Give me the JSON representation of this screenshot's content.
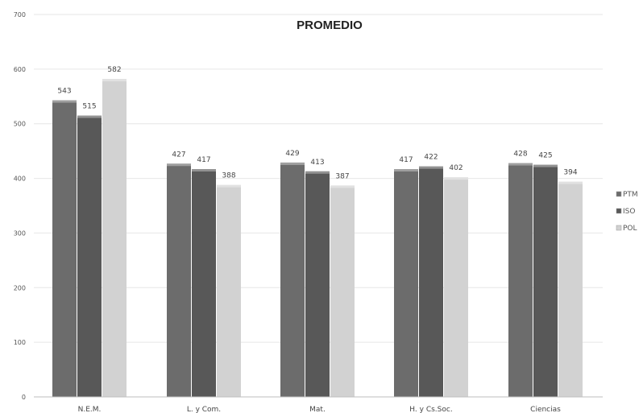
{
  "chart_data": {
    "type": "bar",
    "title": "PROMEDIO",
    "categories": [
      "N.E.M.",
      "L. y Com.",
      "Mat.",
      "H. y Cs.Soc.",
      "Ciencias"
    ],
    "series": [
      {
        "name": "PTM",
        "color": "#6c6c6c",
        "values": [
          543,
          427,
          429,
          417,
          428
        ]
      },
      {
        "name": "ISO",
        "color": "#585858",
        "values": [
          515,
          417,
          413,
          422,
          425
        ]
      },
      {
        "name": "POL",
        "color": "#d2d2d2",
        "values": [
          582,
          388,
          387,
          402,
          394
        ]
      }
    ],
    "ylim": [
      0,
      700
    ],
    "yticks": [
      "0",
      "100",
      "200",
      "300",
      "400",
      "500",
      "600",
      "700"
    ],
    "xlabel": "",
    "ylabel": "",
    "grid": true,
    "legend": "right"
  }
}
